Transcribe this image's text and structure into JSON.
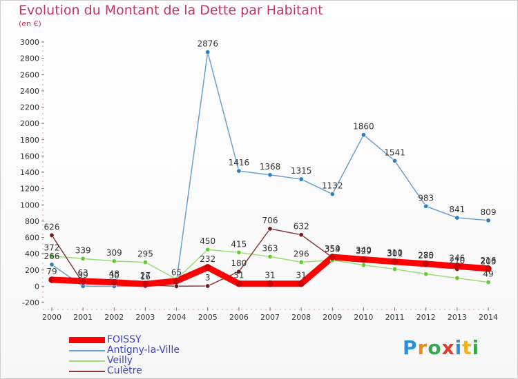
{
  "header": {
    "title": "Evolution du Montant de la Dette par Habitant",
    "subtitle": "(en €)"
  },
  "logo": {
    "text": "Proxiti",
    "colors": [
      "#2e8fd6",
      "#f08a1c",
      "#35a852",
      "#e6392f",
      "#2e8fd6",
      "#f0b51c",
      "#35a852"
    ]
  },
  "chart_data": {
    "type": "line",
    "title": "Evolution du Montant de la Dette par Habitant",
    "subtitle": "(en €)",
    "xlabel": "",
    "ylabel": "",
    "x": [
      2000,
      2001,
      2002,
      2003,
      2004,
      2005,
      2006,
      2007,
      2008,
      2009,
      2010,
      2011,
      2012,
      2013,
      2014
    ],
    "ylim": [
      -200,
      3000
    ],
    "yticks": [
      -200,
      0,
      200,
      400,
      600,
      800,
      1000,
      1200,
      1400,
      1600,
      1800,
      2000,
      2200,
      2400,
      2600,
      2800,
      3000
    ],
    "grid": false,
    "legend": "bottom-left",
    "series": [
      {
        "name": "FOISSY",
        "color": "#ff0000",
        "marker": "#cc0000",
        "values": [
          79,
          63,
          48,
          27,
          65,
          232,
          31,
          31,
          31,
          359,
          329,
          301,
          275,
          246,
          216
        ],
        "labels": [
          "79",
          "63",
          "48",
          "27",
          "65",
          "232",
          "31",
          "31",
          "31",
          "359",
          "329",
          "301",
          "275",
          "246",
          "216"
        ]
      },
      {
        "name": "Antigny-la-Ville",
        "color": "#6a9fd1",
        "marker": "#2f7fc4",
        "values": [
          266,
          0,
          0,
          0,
          65,
          2876,
          1416,
          1368,
          1315,
          1132,
          1860,
          1541,
          983,
          841,
          809
        ],
        "labels": [
          "266",
          "",
          "",
          "",
          "",
          "2876",
          "1416",
          "1368",
          "1315",
          "1132",
          "1860",
          "1541",
          "983",
          "841",
          "809"
        ]
      },
      {
        "name": "Veilly",
        "color": "#99dd77",
        "marker": "#66cc33",
        "values": [
          372,
          339,
          309,
          295,
          85,
          450,
          415,
          363,
          296,
          320,
          260,
          210,
          150,
          100,
          49
        ],
        "labels": [
          "372",
          "339",
          "309",
          "295",
          "",
          "450",
          "415",
          "363",
          "296",
          "",
          "",
          "",
          "",
          "",
          "49"
        ]
      },
      {
        "name": "Culètre",
        "color": "#8b3a3a",
        "marker": "#6e1f1f",
        "values": [
          626,
          39,
          30,
          16,
          0,
          3,
          180,
          706,
          632,
          354,
          340,
          310,
          280,
          210,
          203
        ],
        "labels": [
          "626",
          "39",
          "30",
          "16",
          "",
          "3",
          "180",
          "706",
          "632",
          "354",
          "340",
          "310",
          "280",
          "210",
          "203"
        ]
      }
    ]
  }
}
